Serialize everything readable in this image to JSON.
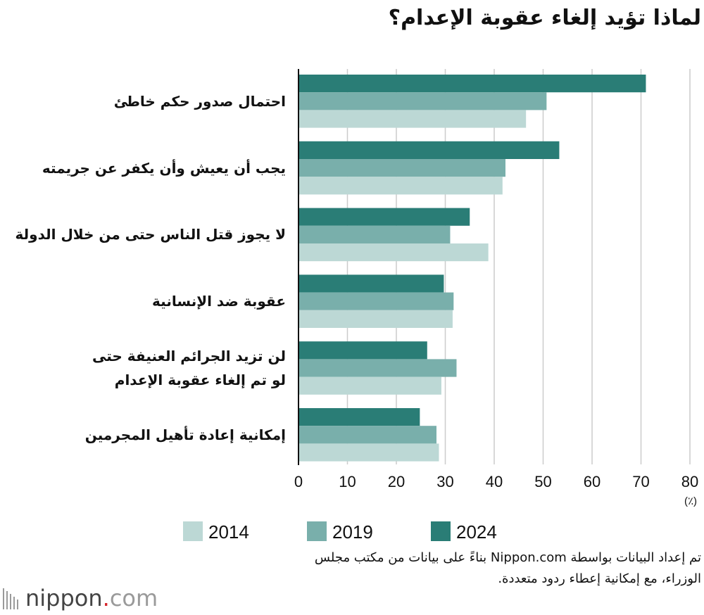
{
  "chart_data": {
    "type": "bar",
    "orientation": "horizontal",
    "title": "لماذا تؤيد إلغاء عقوبة الإعدام؟",
    "categories": [
      [
        "احتمال صدور حكم خاطئ"
      ],
      [
        "يجب أن يعيش وأن يكفر عن جريمته"
      ],
      [
        "لا يجوز قتل الناس حتى من خلال الدولة"
      ],
      [
        "عقوبة ضد الإنسانية"
      ],
      [
        "لن تزيد الجرائم العنيفة حتى",
        "لو تم إلغاء عقوبة الإعدام"
      ],
      [
        "إمكانية إعادة تأهيل المجرمين"
      ]
    ],
    "series": [
      {
        "name": "2024",
        "color": "#2a7d76",
        "values": [
          71.0,
          53.3,
          35.0,
          29.7,
          26.3,
          24.8
        ]
      },
      {
        "name": "2019",
        "color": "#79afab",
        "values": [
          50.7,
          42.3,
          31.0,
          31.7,
          32.3,
          28.2
        ]
      },
      {
        "name": "2014",
        "color": "#bcd8d5",
        "values": [
          46.5,
          41.7,
          38.8,
          31.5,
          29.2,
          28.7
        ]
      }
    ],
    "xlim": [
      0,
      80
    ],
    "xticks": [
      "0",
      "10",
      "20",
      "30",
      "40",
      "50",
      "60",
      "70",
      "80"
    ],
    "xlabel": "(٪)",
    "grid": true,
    "legend": {
      "position": "bottom",
      "entries": [
        {
          "name": "2014",
          "color": "#bcd8d5"
        },
        {
          "name": "2019",
          "color": "#79afab"
        },
        {
          "name": "2024",
          "color": "#2a7d76"
        }
      ]
    }
  },
  "source": {
    "lines": [
      "تم إعداد البيانات بواسطة Nippon.com بناءً على بيانات من مكتب مجلس",
      "الوزراء، مع إمكانية إعطاء ردود متعددة."
    ]
  },
  "logo": {
    "word": "nippon",
    "dot": ".",
    "suffix": "com"
  }
}
